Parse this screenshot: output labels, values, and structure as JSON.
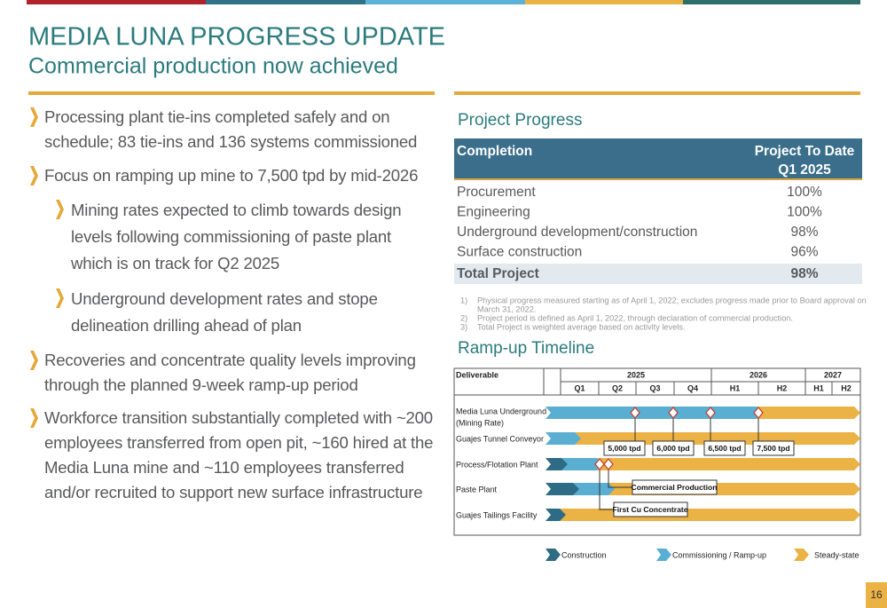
{
  "header": {
    "title": "MEDIA LUNA PROGRESS UPDATE",
    "subtitle": "Commercial production now achieved"
  },
  "bullets": [
    {
      "level": 1,
      "text": "Processing plant tie-ins completed safely and on schedule; 83 tie-ins and 136 systems commissioned"
    },
    {
      "level": 1,
      "text": "Focus on ramping up mine to 7,500 tpd by mid-2026"
    },
    {
      "level": 2,
      "text": "Mining rates expected to climb towards design levels following commissioning of paste plant which is on track for Q2 2025"
    },
    {
      "level": 2,
      "text": "Underground development rates and stope delineation drilling ahead of plan"
    },
    {
      "level": 1,
      "text": "Recoveries and concentrate quality levels improving through the planned 9-week ramp-up period"
    },
    {
      "level": 1,
      "text": "Workforce transition substantially completed with ~200 employees transferred from open pit, ~160 hired at the Media Luna mine and ~110 employees transferred and/or recruited to support new surface infrastructure"
    }
  ],
  "progress": {
    "title": "Project Progress",
    "columns": [
      {
        "label": "Completion"
      },
      {
        "label": "Project To Date",
        "period": "Q1 2025"
      }
    ],
    "rows": [
      [
        "Procurement",
        "100%"
      ],
      [
        "Engineering",
        "100%"
      ],
      [
        "Underground development/construction",
        "98%"
      ],
      [
        "Surface construction",
        "96%"
      ]
    ],
    "total": [
      "Total Project",
      "98%"
    ],
    "footnotes": [
      {
        "marker": "1)",
        "text": "Physical progress measured starting as of April 1, 2022; excludes progress made prior to Board approval on",
        "continuation": "March 31, 2022."
      },
      {
        "marker": "2)",
        "text": "Project period is defined as April 1, 2022, through declaration of commercial production."
      },
      {
        "marker": "3)",
        "text": "Total Project is weighted average based on activity levels."
      }
    ]
  },
  "timeline": {
    "title": "Ramp-up Timeline",
    "deliverable_label": "Deliverable",
    "years": [
      "2025",
      "2026",
      "2027"
    ],
    "periods": [
      "Q1",
      "Q2",
      "Q3",
      "Q4",
      "H1",
      "H2",
      "H1",
      "H2"
    ],
    "rows": [
      {
        "label": "Media Luna Underground",
        "note": "(Mining Rate)"
      },
      {
        "label": "Guajes Tunnel Conveyor"
      },
      {
        "label": "Process/Flotation Plant"
      },
      {
        "label": "Paste Plant"
      },
      {
        "label": "Guajes Tailings Facility"
      }
    ],
    "milestones": [
      "5,000 tpd",
      "6,000 tpd",
      "6,500 tpd",
      "7,500 tpd",
      "Commercial Production",
      "First Cu Concentrate"
    ],
    "legend": [
      "Construction",
      "Commissioning / Ramp-up",
      "Steady-state"
    ]
  },
  "page_number": "16"
}
